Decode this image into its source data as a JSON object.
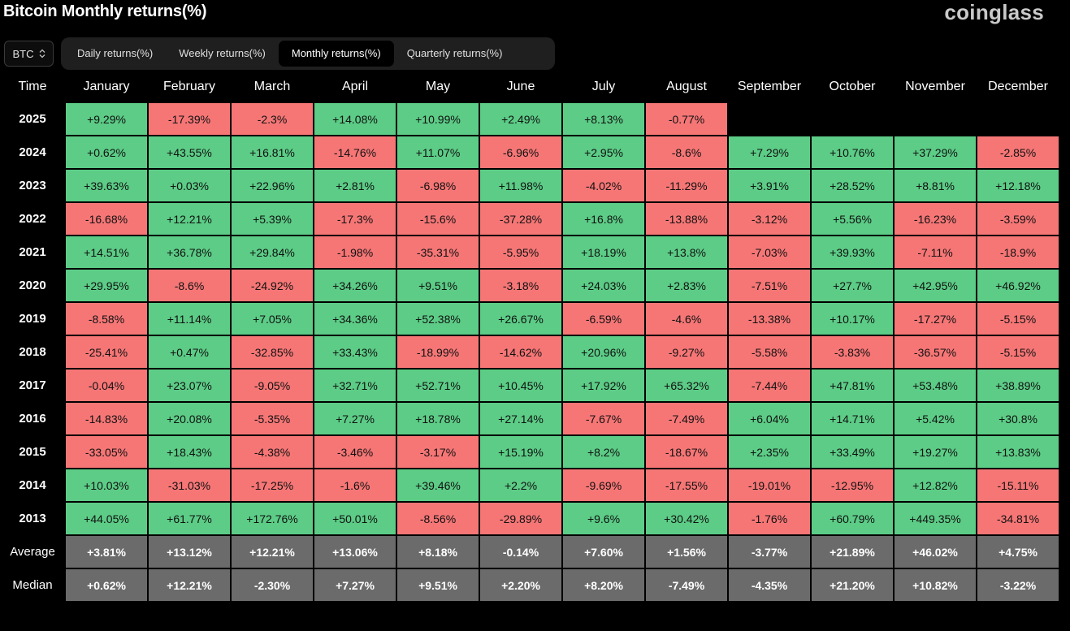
{
  "header": {
    "title": "Bitcoin Monthly returns(%)",
    "brand": "coinglass"
  },
  "asset_select": {
    "value": "BTC",
    "icon": "chevron-updown-icon"
  },
  "tabs": [
    {
      "label": "Daily returns(%)",
      "active": false
    },
    {
      "label": "Weekly returns(%)",
      "active": false
    },
    {
      "label": "Monthly returns(%)",
      "active": true
    },
    {
      "label": "Quarterly returns(%)",
      "active": false
    }
  ],
  "colors": {
    "positive": "#5ccc86",
    "negative": "#f67676",
    "stat": "#6b6b6b"
  },
  "table": {
    "corner_label": "Time",
    "months": [
      "January",
      "February",
      "March",
      "April",
      "May",
      "June",
      "July",
      "August",
      "September",
      "October",
      "November",
      "December"
    ],
    "rows": [
      {
        "year": "2025",
        "values": [
          "+9.29%",
          "-17.39%",
          "-2.3%",
          "+14.08%",
          "+10.99%",
          "+2.49%",
          "+8.13%",
          "-0.77%",
          "",
          "",
          "",
          ""
        ]
      },
      {
        "year": "2024",
        "values": [
          "+0.62%",
          "+43.55%",
          "+16.81%",
          "-14.76%",
          "+11.07%",
          "-6.96%",
          "+2.95%",
          "-8.6%",
          "+7.29%",
          "+10.76%",
          "+37.29%",
          "-2.85%"
        ]
      },
      {
        "year": "2023",
        "values": [
          "+39.63%",
          "+0.03%",
          "+22.96%",
          "+2.81%",
          "-6.98%",
          "+11.98%",
          "-4.02%",
          "-11.29%",
          "+3.91%",
          "+28.52%",
          "+8.81%",
          "+12.18%"
        ]
      },
      {
        "year": "2022",
        "values": [
          "-16.68%",
          "+12.21%",
          "+5.39%",
          "-17.3%",
          "-15.6%",
          "-37.28%",
          "+16.8%",
          "-13.88%",
          "-3.12%",
          "+5.56%",
          "-16.23%",
          "-3.59%"
        ]
      },
      {
        "year": "2021",
        "values": [
          "+14.51%",
          "+36.78%",
          "+29.84%",
          "-1.98%",
          "-35.31%",
          "-5.95%",
          "+18.19%",
          "+13.8%",
          "-7.03%",
          "+39.93%",
          "-7.11%",
          "-18.9%"
        ]
      },
      {
        "year": "2020",
        "values": [
          "+29.95%",
          "-8.6%",
          "-24.92%",
          "+34.26%",
          "+9.51%",
          "-3.18%",
          "+24.03%",
          "+2.83%",
          "-7.51%",
          "+27.7%",
          "+42.95%",
          "+46.92%"
        ]
      },
      {
        "year": "2019",
        "values": [
          "-8.58%",
          "+11.14%",
          "+7.05%",
          "+34.36%",
          "+52.38%",
          "+26.67%",
          "-6.59%",
          "-4.6%",
          "-13.38%",
          "+10.17%",
          "-17.27%",
          "-5.15%"
        ]
      },
      {
        "year": "2018",
        "values": [
          "-25.41%",
          "+0.47%",
          "-32.85%",
          "+33.43%",
          "-18.99%",
          "-14.62%",
          "+20.96%",
          "-9.27%",
          "-5.58%",
          "-3.83%",
          "-36.57%",
          "-5.15%"
        ]
      },
      {
        "year": "2017",
        "values": [
          "-0.04%",
          "+23.07%",
          "-9.05%",
          "+32.71%",
          "+52.71%",
          "+10.45%",
          "+17.92%",
          "+65.32%",
          "-7.44%",
          "+47.81%",
          "+53.48%",
          "+38.89%"
        ]
      },
      {
        "year": "2016",
        "values": [
          "-14.83%",
          "+20.08%",
          "-5.35%",
          "+7.27%",
          "+18.78%",
          "+27.14%",
          "-7.67%",
          "-7.49%",
          "+6.04%",
          "+14.71%",
          "+5.42%",
          "+30.8%"
        ]
      },
      {
        "year": "2015",
        "values": [
          "-33.05%",
          "+18.43%",
          "-4.38%",
          "-3.46%",
          "-3.17%",
          "+15.19%",
          "+8.2%",
          "-18.67%",
          "+2.35%",
          "+33.49%",
          "+19.27%",
          "+13.83%"
        ]
      },
      {
        "year": "2014",
        "values": [
          "+10.03%",
          "-31.03%",
          "-17.25%",
          "-1.6%",
          "+39.46%",
          "+2.2%",
          "-9.69%",
          "-17.55%",
          "-19.01%",
          "-12.95%",
          "+12.82%",
          "-15.11%"
        ]
      },
      {
        "year": "2013",
        "values": [
          "+44.05%",
          "+61.77%",
          "+172.76%",
          "+50.01%",
          "-8.56%",
          "-29.89%",
          "+9.6%",
          "+30.42%",
          "-1.76%",
          "+60.79%",
          "+449.35%",
          "-34.81%"
        ]
      }
    ],
    "stats": [
      {
        "label": "Average",
        "values": [
          "+3.81%",
          "+13.12%",
          "+12.21%",
          "+13.06%",
          "+8.18%",
          "-0.14%",
          "+7.60%",
          "+1.56%",
          "-3.77%",
          "+21.89%",
          "+46.02%",
          "+4.75%"
        ]
      },
      {
        "label": "Median",
        "values": [
          "+0.62%",
          "+12.21%",
          "-2.30%",
          "+7.27%",
          "+9.51%",
          "+2.20%",
          "+8.20%",
          "-7.49%",
          "-4.35%",
          "+21.20%",
          "+10.82%",
          "-3.22%"
        ]
      }
    ]
  }
}
